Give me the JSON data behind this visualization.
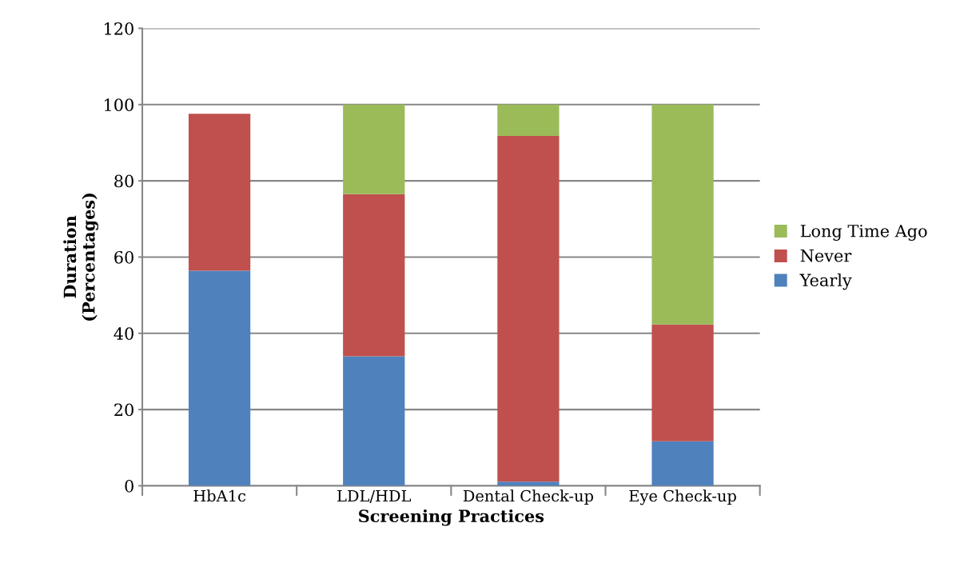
{
  "chart_data": {
    "type": "bar",
    "stacked": true,
    "xlabel": "Screening Practices",
    "ylabel": "Duration\n(Percentages)",
    "categories": [
      "HbA1c",
      "LDL/HDL",
      "Dental Check-up",
      "Eye Check-up"
    ],
    "series": [
      {
        "name": "Yearly",
        "color": "#4f81bd",
        "values": [
          56.4,
          34.0,
          1.1,
          11.7
        ]
      },
      {
        "name": "Never",
        "color": "#c0504d",
        "values": [
          41.2,
          42.5,
          90.7,
          30.6
        ]
      },
      {
        "name": "Long Time Ago",
        "color": "#9bbb59",
        "values": [
          null,
          23.5,
          8.2,
          57.7
        ]
      }
    ],
    "ylim": [
      0,
      120
    ],
    "yticks": [
      0,
      20,
      40,
      60,
      80,
      100,
      120
    ],
    "grid": "y",
    "legend": "right"
  }
}
